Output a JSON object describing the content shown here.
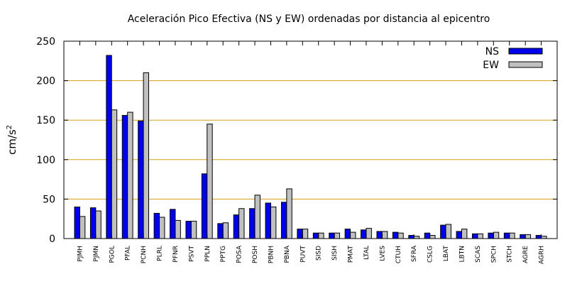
{
  "chart_data": {
    "type": "bar",
    "title": "Aceleración Pico Efectiva (NS y EW) ordenadas por distancia al epicentro",
    "ylabel_base": "cm/s",
    "ylabel_exp": "2",
    "xlabel": "",
    "ylim": [
      0,
      250
    ],
    "yticks": [
      "0",
      "50",
      "100",
      "150",
      "200",
      "250"
    ],
    "grid": "horizontal",
    "legend_position": "top-right",
    "categories": [
      "PJMH",
      "PJMN",
      "PGOL",
      "PFAL",
      "PCNH",
      "PLRL",
      "PFNR",
      "PSVT",
      "PPLN",
      "PPTG",
      "POSA",
      "POSH",
      "PBNH",
      "PBNA",
      "PUVT",
      "SISD",
      "SISH",
      "PMAT",
      "LTAL",
      "LVES",
      "CTUH",
      "SFRA",
      "CSLG",
      "LBAT",
      "LBTN",
      "SCAS",
      "SPCH",
      "STCH",
      "AGRE",
      "AGRH"
    ],
    "series": [
      {
        "name": "NS",
        "color": "#0000ee",
        "values": [
          40,
          39,
          232,
          156,
          149,
          32,
          37,
          22,
          82,
          19,
          30,
          38,
          45,
          46,
          12,
          7,
          7,
          12,
          11,
          9,
          8,
          4,
          7,
          17,
          9,
          6,
          7,
          7,
          5,
          4
        ]
      },
      {
        "name": "EW",
        "color": "#c0c0c0",
        "values": [
          28,
          35,
          163,
          160,
          210,
          27,
          23,
          22,
          145,
          20,
          38,
          55,
          40,
          63,
          12,
          7,
          7,
          8,
          13,
          9,
          7,
          3,
          4,
          18,
          12,
          6,
          8,
          7,
          5,
          3
        ]
      }
    ],
    "grid_color": "#d4a017"
  }
}
